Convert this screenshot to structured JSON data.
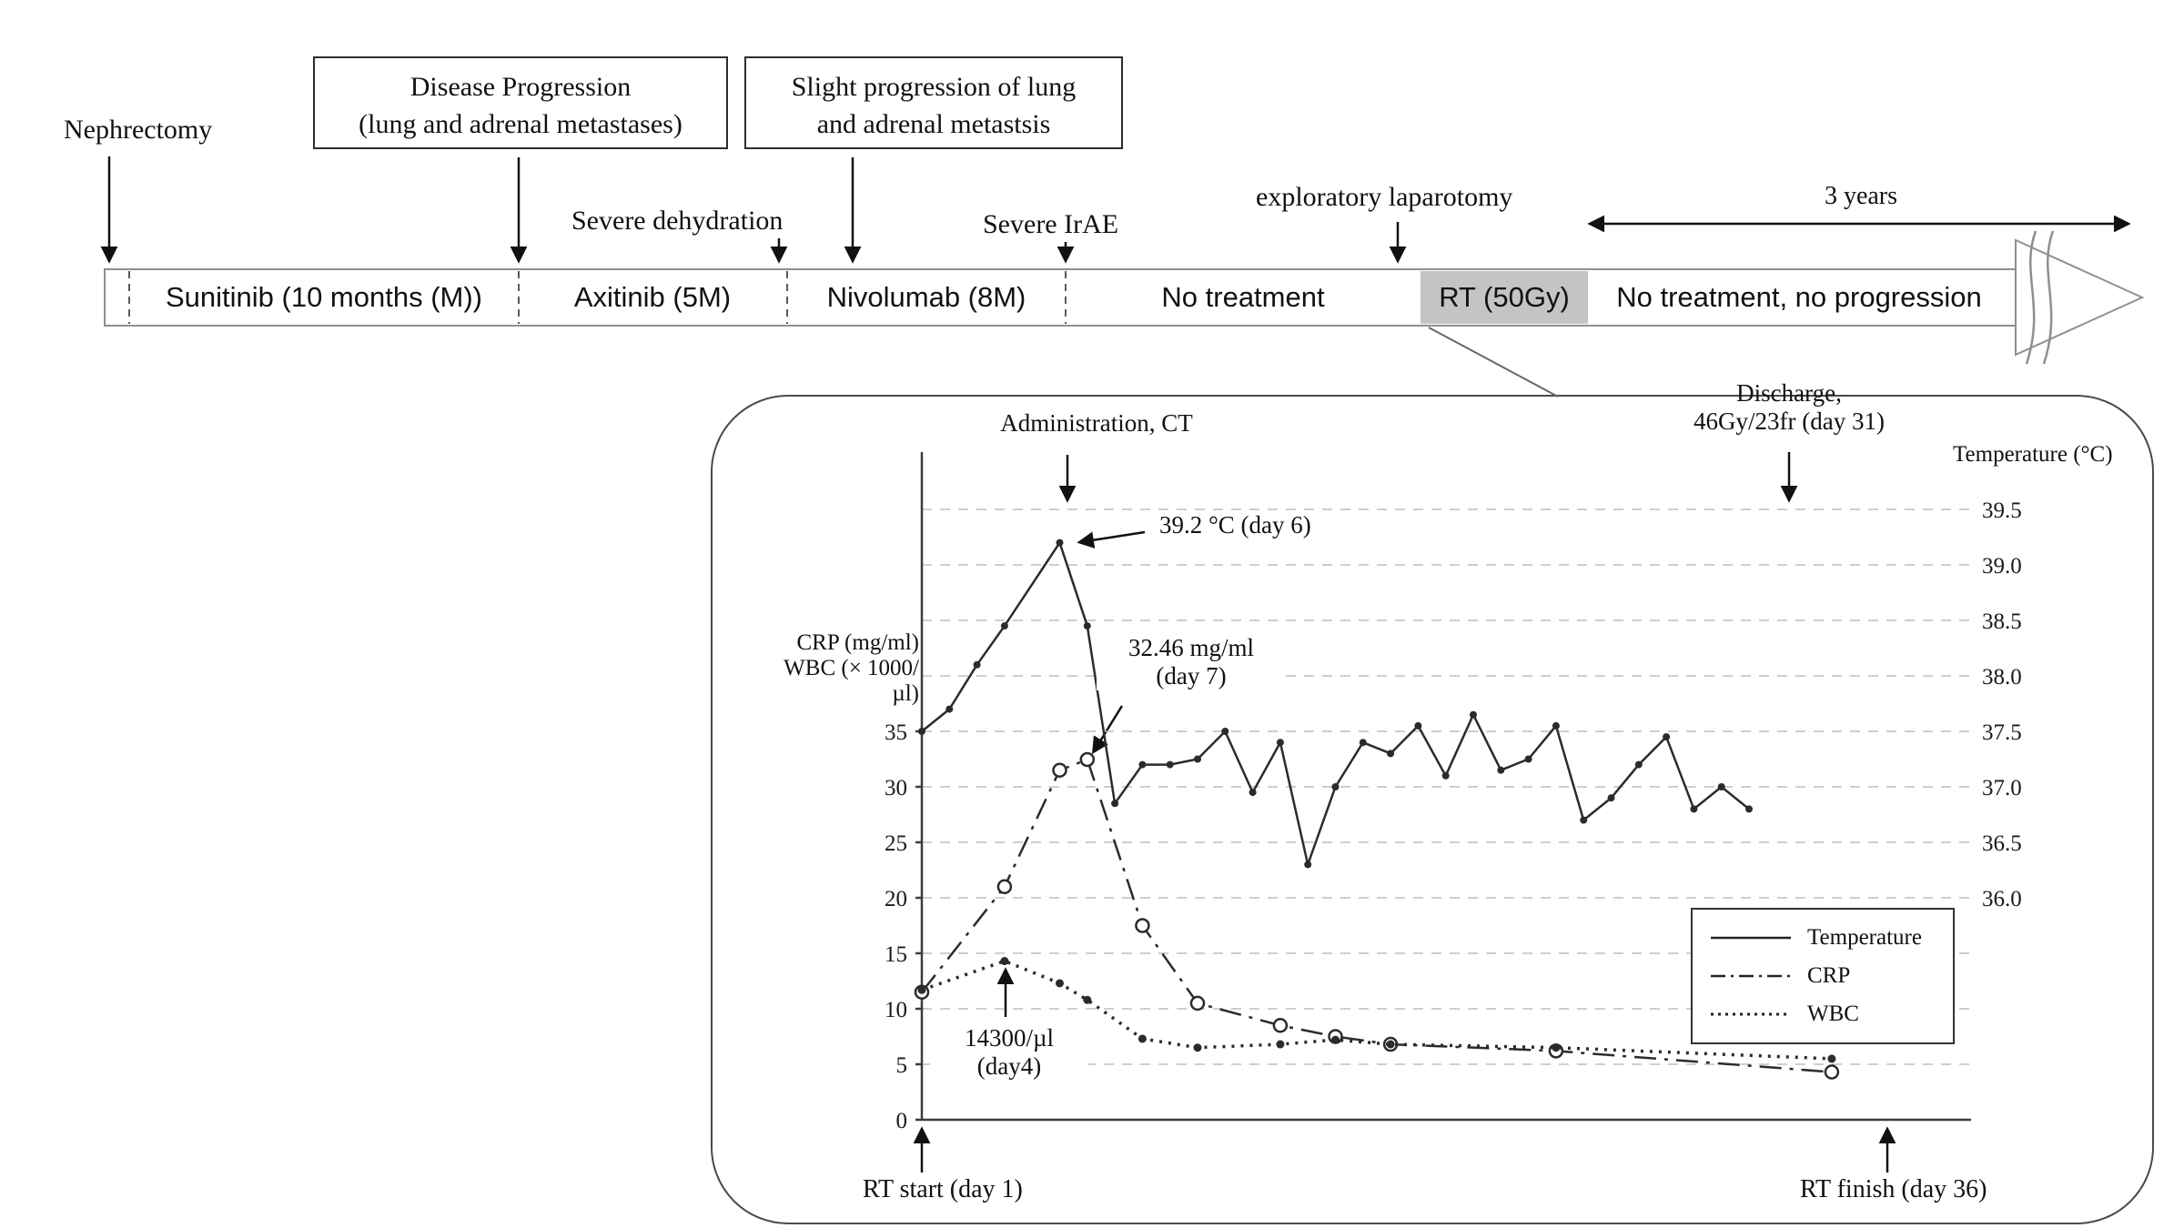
{
  "timeline": {
    "nephrectomy": "Nephrectomy",
    "disease_progression": {
      "line1": "Disease Progression",
      "line2": "(lung and adrenal metastases)"
    },
    "slight_progression": {
      "line1": "Slight progression of  lung",
      "line2": "and adrenal metastsis"
    },
    "severe_dehydration": "Severe dehydration",
    "severe_irae": "Severe IrAE",
    "exploratory_laparotomy": "exploratory laparotomy",
    "three_years": "3 years",
    "rt_highlight_color": "#c4c4c4",
    "segments": [
      {
        "label": "Sunitinib (10 months (M))"
      },
      {
        "label": "Axitinib (5M)"
      },
      {
        "label": "Nivolumab (8M)"
      },
      {
        "label": "No treatment"
      },
      {
        "label": "RT (50Gy)"
      },
      {
        "label": "No treatment, no progression"
      }
    ]
  },
  "chart": {
    "administration": "Administration,  CT",
    "discharge": {
      "line1": "Discharge,",
      "line2": "46Gy/23fr (day 31)"
    },
    "temp_peak": "39.2 °C (day 6)",
    "crp_peak": {
      "line1": "32.46 mg/ml",
      "line2": "(day 7)"
    },
    "wbc_peak": {
      "line1": "14300/µl",
      "line2": "(day4)"
    },
    "rt_start": "RT start (day 1)",
    "rt_finish": "RT finish (day 36)"
  },
  "chart_data": {
    "type": "line",
    "x_axis": {
      "unit": "day",
      "range": [
        1,
        36
      ]
    },
    "left_axis": {
      "title_line1": "CRP (mg/ml)",
      "title_line2": "WBC (× 1000/µl)",
      "ticks": [
        0,
        5,
        10,
        15,
        20,
        25,
        30,
        35
      ],
      "range": [
        0,
        57
      ]
    },
    "right_axis": {
      "title": "Temperature  (°C)",
      "ticks": [
        36.0,
        36.5,
        37.0,
        37.5,
        38.0,
        38.5,
        39.0,
        39.5
      ]
    },
    "grid": "dashed-horizontal",
    "legend_position": "right-bottom",
    "series": [
      {
        "name": "Temperature",
        "axis": "right",
        "line": "solid",
        "days": [
          1,
          2,
          3,
          4,
          6,
          7,
          8,
          9,
          10,
          11,
          12,
          13,
          14,
          15,
          16,
          17,
          18,
          19,
          20,
          21,
          22,
          23,
          24,
          25,
          26,
          27,
          28,
          29,
          30,
          31
        ],
        "values": [
          37.5,
          37.7,
          38.1,
          38.45,
          39.2,
          38.45,
          36.85,
          37.2,
          37.2,
          37.25,
          37.5,
          36.95,
          37.4,
          36.3,
          37.0,
          37.4,
          37.3,
          37.55,
          37.1,
          37.65,
          37.15,
          37.25,
          37.55,
          36.7,
          36.9,
          37.2,
          37.45,
          36.8,
          37.0,
          36.8
        ]
      },
      {
        "name": "CRP",
        "axis": "left",
        "line": "dashdot",
        "days": [
          1,
          4,
          6,
          7,
          9,
          11,
          14,
          16,
          18,
          24,
          34
        ],
        "values": [
          11.5,
          21,
          31.5,
          32.46,
          17.5,
          10.5,
          8.5,
          7.5,
          6.8,
          6.2,
          4.3
        ]
      },
      {
        "name": "WBC",
        "axis": "left",
        "line": "dotted",
        "days": [
          1,
          4,
          6,
          7,
          9,
          11,
          14,
          16,
          18,
          24,
          34
        ],
        "values": [
          11.7,
          14.3,
          12.3,
          10.8,
          7.3,
          6.5,
          6.8,
          7.2,
          6.8,
          6.5,
          5.5
        ]
      }
    ],
    "annotations": [
      {
        "text": "39.2 °C (day 6)",
        "target": "Temperature day 6"
      },
      {
        "text": "32.46 mg/ml (day 7)",
        "target": "CRP day 7"
      },
      {
        "text": "14300/µl (day4)",
        "target": "WBC day 4"
      },
      {
        "text": "Administration, CT",
        "target": "day 6"
      },
      {
        "text": "Discharge, 46Gy/23fr (day 31)",
        "target": "day 31"
      },
      {
        "text": "RT start (day 1)",
        "target": "day 1"
      },
      {
        "text": "RT finish (day 36)",
        "target": "day 36"
      }
    ]
  }
}
